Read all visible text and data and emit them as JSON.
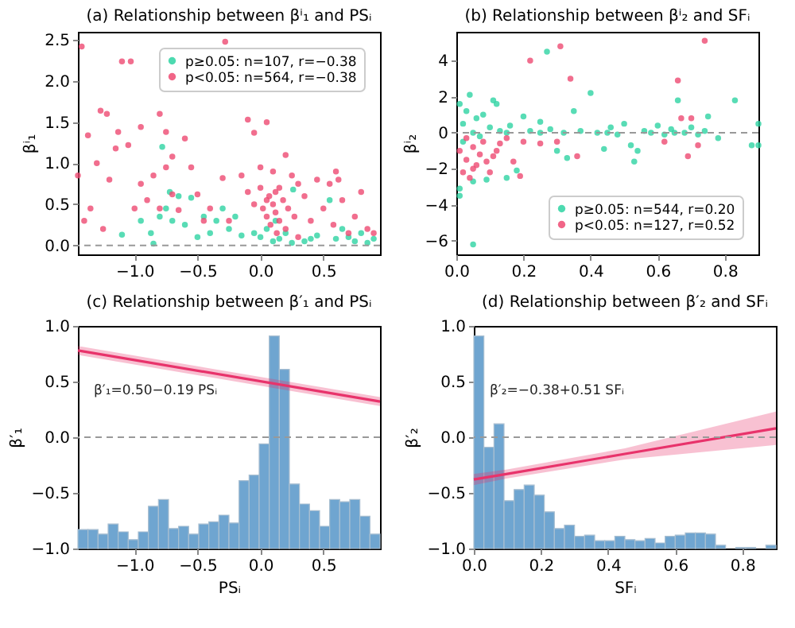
{
  "chart_data": [
    {
      "type": "scatter",
      "title": "(a) Relationship between βⁱ₁ and PSᵢ",
      "ylabel": "βⁱ₁",
      "marker": "circle",
      "legend": "top right",
      "xlim": [
        -1.45,
        0.95
      ],
      "ylim": [
        -0.11,
        2.6
      ],
      "xticks": [
        {
          "value": -1,
          "label": "−1.0"
        },
        {
          "value": -0.5,
          "label": "−0.5"
        },
        {
          "value": 0,
          "label": "0.0"
        },
        0.5
      ],
      "yticks": [
        {
          "value": 0,
          "label": "0.0"
        },
        0.5,
        {
          "value": 1,
          "label": "1.0"
        },
        1.5,
        {
          "value": 2,
          "label": "2.0"
        },
        2.5
      ],
      "ref_lines": [
        {
          "axis": "y",
          "value": 0,
          "color": "#999999",
          "line_style": "dashed"
        }
      ],
      "series": [
        {
          "name": "p≥0.05: n=107, r=−0.38",
          "color": "#2ed3a2",
          "x": [
            -0.78,
            -0.72,
            -0.65,
            -0.75,
            -0.8,
            -0.87,
            -0.85,
            -1.1,
            -0.7,
            -0.6,
            -0.55,
            -0.45,
            -0.4,
            -0.35,
            -0.3,
            -0.25,
            -0.2,
            -0.15,
            -0.05,
            0.0,
            0.05,
            0.1,
            0.12,
            0.15,
            0.2,
            0.25,
            0.26,
            0.35,
            0.45,
            0.55,
            0.6,
            0.65,
            0.7,
            0.75,
            0.8,
            0.85,
            0.9,
            -0.95,
            -0.5,
            0.4
          ],
          "values": [
            1.2,
            0.65,
            0.6,
            0.45,
            0.35,
            0.15,
            0.02,
            0.13,
            0.3,
            0.25,
            0.58,
            0.35,
            0.15,
            0.3,
            0.45,
            0.2,
            0.35,
            0.12,
            0.15,
            0.1,
            0.2,
            0.05,
            0.3,
            0.08,
            0.15,
            0.03,
            0.68,
            0.05,
            0.12,
            0.55,
            0.08,
            0.2,
            0.1,
            0.05,
            0.15,
            0.03,
            0.08,
            0.3,
            0.1,
            0.08
          ]
        },
        {
          "name": "p<0.05: n=564, r=−0.38",
          "color": "#ee4a72",
          "x": [
            -1.42,
            -1.1,
            -1.03,
            -1.27,
            -1.22,
            -0.8,
            -0.28,
            -0.1,
            0.05,
            -0.05,
            -1.37,
            -1.13,
            -0.95,
            -0.75,
            -0.6,
            -1.45,
            -1.35,
            -1.3,
            -1.2,
            -1.15,
            -1.05,
            -0.95,
            -0.9,
            -0.85,
            -0.8,
            -0.75,
            -0.7,
            -0.65,
            -0.55,
            -0.5,
            -0.4,
            -0.3,
            -0.25,
            -0.15,
            -0.1,
            -0.05,
            0.0,
            0.02,
            0.05,
            0.07,
            0.08,
            0.1,
            0.1,
            0.12,
            0.13,
            0.15,
            0.15,
            0.18,
            0.2,
            0.2,
            0.22,
            0.25,
            0.27,
            0.3,
            0.35,
            0.4,
            0.45,
            0.5,
            0.55,
            0.58,
            0.6,
            0.65,
            0.7,
            0.75,
            0.8,
            0.85,
            0.9,
            -1.4,
            -1.25,
            -1.0,
            -0.45,
            0.0,
            0.05,
            0.12,
            0.3,
            -0.7,
            0.62
          ],
          "values": [
            2.42,
            2.24,
            2.24,
            1.64,
            1.6,
            1.6,
            2.48,
            1.53,
            1.5,
            1.37,
            1.34,
            1.38,
            1.44,
            1.38,
            1.3,
            0.85,
            0.45,
            1.0,
            0.8,
            1.18,
            1.22,
            0.75,
            0.55,
            0.85,
            0.45,
            0.95,
            0.62,
            0.43,
            0.95,
            0.62,
            0.45,
            0.82,
            0.3,
            0.85,
            0.65,
            0.5,
            0.7,
            0.45,
            0.35,
            0.6,
            0.25,
            0.9,
            0.5,
            0.4,
            0.15,
            0.7,
            0.3,
            0.55,
            1.1,
            0.2,
            0.45,
            0.85,
            0.35,
            0.1,
            0.6,
            0.3,
            0.8,
            0.45,
            0.75,
            0.25,
            0.9,
            0.55,
            0.15,
            0.35,
            0.65,
            0.2,
            0.15,
            0.3,
            0.2,
            0.45,
            0.3,
            0.95,
            0.55,
            0.65,
            0.75,
            1.08,
            0.8
          ]
        }
      ]
    },
    {
      "type": "scatter",
      "title": "(b) Relationship between βⁱ₂ and SFᵢ",
      "ylabel": "βⁱ₂",
      "marker": "circle",
      "legend": "bottom right",
      "xlim": [
        0,
        0.9
      ],
      "ylim": [
        -6.75,
        5.6
      ],
      "xticks": [
        {
          "value": 0,
          "label": "0.0"
        },
        0.2,
        0.4,
        0.6,
        0.8
      ],
      "yticks": [
        {
          "value": -6,
          "label": "−6"
        },
        {
          "value": -4,
          "label": "−4"
        },
        {
          "value": -2,
          "label": "−2"
        },
        0,
        2,
        4
      ],
      "ref_lines": [
        {
          "axis": "y",
          "value": 0,
          "color": "#999999",
          "line_style": "dashed"
        }
      ],
      "series": [
        {
          "name": "p≥0.05: n=544, r=0.20",
          "color": "#2ed3a2",
          "x": [
            0.01,
            0.01,
            0.01,
            0.02,
            0.02,
            0.03,
            0.04,
            0.05,
            0.05,
            0.06,
            0.07,
            0.08,
            0.09,
            0.1,
            0.11,
            0.12,
            0.13,
            0.15,
            0.16,
            0.18,
            0.2,
            0.22,
            0.25,
            0.27,
            0.28,
            0.3,
            0.32,
            0.33,
            0.35,
            0.37,
            0.4,
            0.42,
            0.44,
            0.46,
            0.48,
            0.5,
            0.52,
            0.53,
            0.54,
            0.56,
            0.58,
            0.6,
            0.62,
            0.64,
            0.66,
            0.68,
            0.7,
            0.72,
            0.74,
            0.75,
            0.78,
            0.83,
            0.88,
            0.9,
            0.9,
            0.05,
            0.15,
            0.25,
            0.45,
            0.65
          ],
          "values": [
            1.6,
            -3.1,
            -3.5,
            0.5,
            -0.5,
            1.2,
            2.1,
            -6.2,
            -2.7,
            0.8,
            -0.2,
            1.0,
            -2.6,
            0.3,
            1.8,
            1.6,
            0.1,
            -2.5,
            0.4,
            -2.1,
            0.9,
            0.1,
            0.6,
            4.5,
            0.2,
            -1.0,
            0.0,
            -1.4,
            1.2,
            0.1,
            2.2,
            0.0,
            -0.9,
            0.3,
            -0.1,
            0.5,
            -0.7,
            -1.6,
            -1.0,
            0.1,
            0.0,
            0.4,
            -0.1,
            0.2,
            1.8,
            0.0,
            0.3,
            -0.1,
            0.1,
            0.9,
            -0.3,
            1.8,
            -0.7,
            0.5,
            -0.7,
            0.0,
            0.0,
            0.0,
            0.0,
            0.0
          ]
        },
        {
          "name": "p<0.05: n=127, r=0.52",
          "color": "#ee4a72",
          "x": [
            0.01,
            0.02,
            0.03,
            0.04,
            0.05,
            0.06,
            0.07,
            0.08,
            0.09,
            0.1,
            0.12,
            0.13,
            0.15,
            0.17,
            0.19,
            0.2,
            0.22,
            0.25,
            0.3,
            0.31,
            0.34,
            0.36,
            0.62,
            0.66,
            0.67,
            0.69,
            0.7,
            0.72,
            0.74,
            0.05,
            0.11,
            0.03
          ],
          "values": [
            -1.0,
            -2.2,
            -1.5,
            -2.5,
            -0.8,
            -1.8,
            -1.2,
            -0.5,
            -1.6,
            -2.2,
            -1.0,
            -0.6,
            -0.3,
            -1.6,
            -2.4,
            -0.5,
            4.0,
            -0.6,
            -0.5,
            4.8,
            3.0,
            -1.3,
            -0.5,
            2.9,
            0.8,
            -1.3,
            0.8,
            -0.7,
            5.1,
            -2.0,
            -1.3,
            -0.3
          ]
        }
      ]
    },
    {
      "type": "bar",
      "title": "(c) Relationship between β′₁ and PSᵢ",
      "xlabel": "PSᵢ",
      "ylabel": "β′₁",
      "color": "#6fa5d0",
      "xlim": [
        -1.45,
        0.95
      ],
      "ylim": [
        -1,
        1
      ],
      "xticks": [
        {
          "value": -1,
          "label": "−1.0"
        },
        {
          "value": -0.5,
          "label": "−0.5"
        },
        {
          "value": 0,
          "label": "0.0"
        },
        0.5
      ],
      "yticks": [
        {
          "value": -1,
          "label": "−1.0"
        },
        {
          "value": -0.5,
          "label": "−0.5"
        },
        {
          "value": 0,
          "label": "0.0"
        },
        0.5,
        {
          "value": 1,
          "label": "1.0"
        }
      ],
      "x": [
        -1.41,
        -1.33,
        -1.25,
        -1.17,
        -1.09,
        -1.01,
        -0.93,
        -0.85,
        -0.77,
        -0.69,
        -0.61,
        -0.53,
        -0.45,
        -0.37,
        -0.29,
        -0.21,
        -0.13,
        -0.05,
        0.03,
        0.11,
        0.19,
        0.27,
        0.35,
        0.43,
        0.51,
        0.59,
        0.67,
        0.75,
        0.83,
        0.91
      ],
      "base": [
        -1,
        -1,
        -1,
        -1,
        -1,
        -1,
        -1,
        -1,
        -1,
        -1,
        -1,
        -1,
        -1,
        -1,
        -1,
        -1,
        -1,
        -1,
        -1,
        -1,
        -1,
        -1,
        -1,
        -1,
        -1,
        -1,
        -1,
        -1,
        -1,
        -1
      ],
      "values": [
        0.17,
        0.17,
        0.13,
        0.22,
        0.15,
        0.08,
        0.15,
        0.38,
        0.44,
        0.18,
        0.2,
        0.13,
        0.22,
        0.24,
        0.3,
        0.23,
        0.61,
        0.66,
        0.94,
        1.91,
        1.61,
        0.58,
        0.4,
        0.34,
        0.2,
        0.44,
        0.42,
        0.44,
        0.29,
        0.13
      ],
      "ref_lines": [
        {
          "axis": "y",
          "value": 0,
          "color": "#999999",
          "line_style": "dashed"
        }
      ],
      "annotations": [
        "β′₁=0.50−0.19 PSᵢ"
      ],
      "series": [
        {
          "type": "line",
          "color": "#e8336b",
          "x": [
            -1.45,
            0.95
          ],
          "values": [
            0.78,
            0.32
          ],
          "lower": [
            0.74,
            0.28
          ],
          "upper": [
            0.82,
            0.36
          ]
        }
      ]
    },
    {
      "type": "bar",
      "title": "(d) Relationship between β′₂ and SFᵢ",
      "xlabel": "SFᵢ",
      "ylabel": "β′₂",
      "color": "#6fa5d0",
      "xlim": [
        0,
        0.9
      ],
      "ylim": [
        -1,
        1
      ],
      "xticks": [
        {
          "value": 0,
          "label": "0.0"
        },
        0.2,
        0.4,
        0.6,
        0.8
      ],
      "yticks": [
        {
          "value": -1,
          "label": "−1.0"
        },
        {
          "value": -0.5,
          "label": "−0.5"
        },
        {
          "value": 0,
          "label": "0.0"
        },
        0.5,
        {
          "value": 1,
          "label": "1.0"
        }
      ],
      "x": [
        0.015,
        0.045,
        0.075,
        0.105,
        0.135,
        0.165,
        0.195,
        0.225,
        0.255,
        0.285,
        0.315,
        0.345,
        0.375,
        0.405,
        0.435,
        0.465,
        0.495,
        0.525,
        0.555,
        0.585,
        0.615,
        0.645,
        0.675,
        0.705,
        0.735,
        0.765,
        0.795,
        0.825,
        0.855,
        0.885
      ],
      "base": [
        -1,
        -1,
        -1,
        -1,
        -1,
        -1,
        -1,
        -1,
        -1,
        -1,
        -1,
        -1,
        -1,
        -1,
        -1,
        -1,
        -1,
        -1,
        -1,
        -1,
        -1,
        -1,
        -1,
        -1,
        -1,
        null,
        -1,
        -1,
        null,
        -1
      ],
      "values": [
        1.91,
        0.91,
        1.12,
        0.43,
        0.53,
        0.57,
        0.48,
        0.33,
        0.18,
        0.21,
        0.11,
        0.12,
        0.07,
        0.07,
        0.11,
        0.08,
        0.07,
        0.09,
        0.05,
        0.11,
        0.12,
        0.14,
        0.14,
        0.13,
        0.03,
        null,
        0.01,
        0.01,
        null,
        0.03
      ],
      "ref_lines": [
        {
          "axis": "y",
          "value": 0,
          "color": "#999999",
          "line_style": "dashed"
        }
      ],
      "annotations": [
        "β′₂=−0.38+0.51 SFᵢ"
      ],
      "series": [
        {
          "type": "line",
          "color": "#e8336b",
          "x": [
            0,
            0.1,
            0.45,
            0.9
          ],
          "values": [
            -0.38,
            -0.33,
            -0.15,
            0.08
          ],
          "lower": [
            -0.43,
            -0.37,
            -0.2,
            -0.07
          ],
          "upper": [
            -0.33,
            -0.29,
            -0.1,
            0.23
          ]
        }
      ]
    }
  ]
}
